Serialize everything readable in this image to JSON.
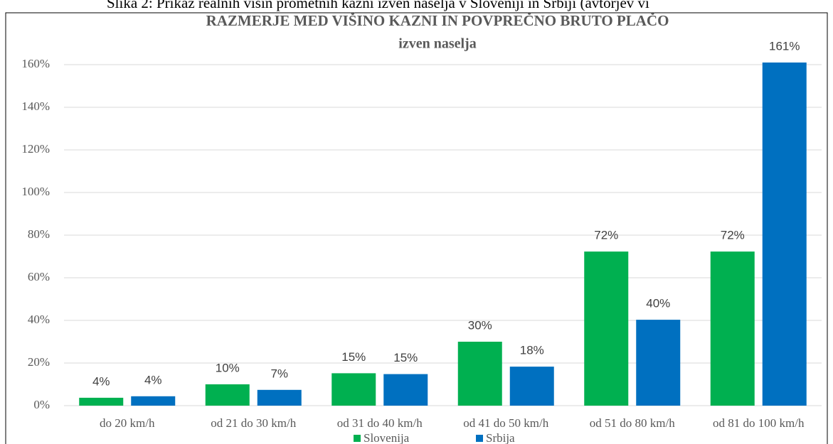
{
  "caption": "Slika 2: Prikaz realnih višin prometnih kazni izven naselja v Sloveniji in Srbiji (avtorjev vi",
  "chart_data": {
    "type": "bar",
    "title": "RAZMERJE MED VIŠINO KAZNI IN POVPREČNO BRUTO PLAČO",
    "subtitle": "izven naselja",
    "categories": [
      "do 20 km/h",
      "od 21 do 30 km/h",
      "od 31 do 40 km/h",
      "od 41 do 50 km/h",
      "od 51 do 80 km/h",
      "od 81 do 100 km/h"
    ],
    "series": [
      {
        "name": "Slovenija",
        "color": "#00b050",
        "values": [
          3.7,
          10,
          15.2,
          30,
          72.3,
          72.3
        ],
        "value_labels": [
          "4%",
          "10%",
          "15%",
          "30%",
          "72%",
          "72%"
        ]
      },
      {
        "name": "Srbija",
        "color": "#0070c0",
        "values": [
          4.4,
          7.4,
          14.8,
          18.3,
          40.3,
          161
        ],
        "value_labels": [
          "4%",
          "7%",
          "15%",
          "18%",
          "40%",
          "161%"
        ]
      }
    ],
    "ylim": [
      0,
      160
    ],
    "yticks": [
      {
        "value": 0,
        "label": "0%"
      },
      {
        "value": 20,
        "label": "20%"
      },
      {
        "value": 40,
        "label": "40%"
      },
      {
        "value": 60,
        "label": "60%"
      },
      {
        "value": 80,
        "label": "80%"
      },
      {
        "value": 100,
        "label": "100%"
      },
      {
        "value": 120,
        "label": "120%"
      },
      {
        "value": 140,
        "label": "140%"
      },
      {
        "value": 160,
        "label": "160%"
      }
    ],
    "grid": true,
    "legend": "bottom"
  }
}
